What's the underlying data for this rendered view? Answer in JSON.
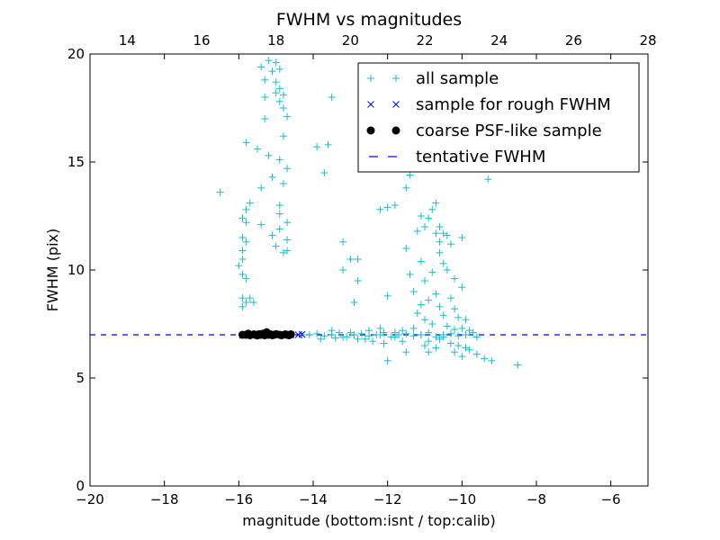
{
  "chart_data": {
    "type": "scatter",
    "title": "FWHM vs magnitudes",
    "xlabel": "magnitude (bottom:isnt / top:calib)",
    "ylabel": "FWHM (pix)",
    "xlim": [
      -20,
      -5
    ],
    "ylim": [
      0,
      20
    ],
    "x_ticks": [
      -20,
      -18,
      -16,
      -14,
      -12,
      -10,
      -8,
      -6
    ],
    "x_tick_labels": [
      "−20",
      "−18",
      "−16",
      "−14",
      "−12",
      "−10",
      "−8",
      "−6"
    ],
    "y_ticks": [
      0,
      5,
      10,
      15,
      20
    ],
    "y_tick_labels": [
      "0",
      "5",
      "10",
      "15",
      "20"
    ],
    "top_xlim": [
      13.0,
      28.0
    ],
    "top_x_ticks": [
      14,
      16,
      18,
      20,
      22,
      24,
      26,
      28
    ],
    "top_x_tick_labels": [
      "14",
      "16",
      "18",
      "20",
      "22",
      "24",
      "26",
      "28"
    ],
    "grid": false,
    "legend_position": "top-right",
    "series": [
      {
        "name": "all sample",
        "marker": "plus",
        "color": "#17becf",
        "points": [
          [
            -15.2,
            19.7
          ],
          [
            -15.4,
            19.4
          ],
          [
            -15.0,
            19.6
          ],
          [
            -15.1,
            19.2
          ],
          [
            -14.9,
            19.3
          ],
          [
            -15.3,
            18.8
          ],
          [
            -15.0,
            18.7
          ],
          [
            -14.9,
            18.4
          ],
          [
            -15.0,
            18.2
          ],
          [
            -14.8,
            18.1
          ],
          [
            -14.9,
            17.8
          ],
          [
            -14.8,
            17.5
          ],
          [
            -15.3,
            18.0
          ],
          [
            -14.7,
            17.1
          ],
          [
            -13.5,
            18.0
          ],
          [
            -15.3,
            17.0
          ],
          [
            -14.8,
            16.2
          ],
          [
            -14.9,
            15.1
          ],
          [
            -14.7,
            14.7
          ],
          [
            -14.8,
            14.0
          ],
          [
            -15.5,
            15.6
          ],
          [
            -15.2,
            15.3
          ],
          [
            -15.4,
            13.8
          ],
          [
            -15.8,
            15.9
          ],
          [
            -16.5,
            13.6
          ],
          [
            -15.1,
            14.3
          ],
          [
            -14.9,
            13.0
          ],
          [
            -15.7,
            13.1
          ],
          [
            -15.8,
            12.8
          ],
          [
            -15.9,
            12.4
          ],
          [
            -15.8,
            12.2
          ],
          [
            -15.9,
            11.5
          ],
          [
            -15.8,
            11.3
          ],
          [
            -15.9,
            10.9
          ],
          [
            -15.9,
            10.5
          ],
          [
            -16.0,
            10.2
          ],
          [
            -15.9,
            9.8
          ],
          [
            -15.8,
            9.6
          ],
          [
            -15.9,
            8.7
          ],
          [
            -15.8,
            8.5
          ],
          [
            -15.7,
            8.7
          ],
          [
            -15.6,
            8.5
          ],
          [
            -15.9,
            8.3
          ],
          [
            -15.4,
            12.1
          ],
          [
            -15.1,
            11.6
          ],
          [
            -14.9,
            12.6
          ],
          [
            -14.9,
            11.9
          ],
          [
            -14.7,
            11.4
          ],
          [
            -14.7,
            10.9
          ],
          [
            -14.8,
            10.8
          ],
          [
            -14.7,
            12.2
          ],
          [
            -15.0,
            11.1
          ],
          [
            -13.9,
            15.7
          ],
          [
            -13.6,
            15.8
          ],
          [
            -13.7,
            14.5
          ],
          [
            -13.2,
            11.3
          ],
          [
            -13.0,
            10.5
          ],
          [
            -13.2,
            10.0
          ],
          [
            -12.8,
            9.5
          ],
          [
            -12.9,
            8.5
          ],
          [
            -12.8,
            10.5
          ],
          [
            -12.2,
            12.8
          ],
          [
            -12.0,
            12.9
          ],
          [
            -11.8,
            13.0
          ],
          [
            -11.5,
            13.8
          ],
          [
            -11.4,
            14.4
          ],
          [
            -11.3,
            14.7
          ],
          [
            -11.1,
            12.5
          ],
          [
            -11.2,
            11.8
          ],
          [
            -11.0,
            12.0
          ],
          [
            -10.9,
            12.4
          ],
          [
            -10.8,
            12.8
          ],
          [
            -10.7,
            13.1
          ],
          [
            -10.6,
            12.0
          ],
          [
            -10.7,
            11.7
          ],
          [
            -10.5,
            11.7
          ],
          [
            -10.6,
            11.3
          ],
          [
            -10.4,
            11.6
          ],
          [
            -10.3,
            11.2
          ],
          [
            -10.0,
            11.5
          ],
          [
            -11.5,
            11.0
          ],
          [
            -11.4,
            9.8
          ],
          [
            -11.1,
            10.4
          ],
          [
            -11.0,
            9.5
          ],
          [
            -10.8,
            9.9
          ],
          [
            -10.6,
            10.8
          ],
          [
            -10.5,
            10.3
          ],
          [
            -10.4,
            10.0
          ],
          [
            -10.2,
            9.6
          ],
          [
            -10.0,
            9.2
          ],
          [
            -9.3,
            14.2
          ],
          [
            -12.0,
            8.8
          ],
          [
            -11.3,
            9.0
          ],
          [
            -11.1,
            8.4
          ],
          [
            -10.9,
            8.6
          ],
          [
            -10.7,
            8.9
          ],
          [
            -10.6,
            8.3
          ],
          [
            -10.5,
            7.9
          ],
          [
            -10.3,
            8.7
          ],
          [
            -10.2,
            8.2
          ],
          [
            -10.1,
            7.8
          ],
          [
            -9.9,
            7.7
          ],
          [
            -11.2,
            8.0
          ],
          [
            -11.0,
            7.7
          ],
          [
            -10.8,
            7.5
          ],
          [
            -10.4,
            7.4
          ],
          [
            -10.0,
            7.3
          ],
          [
            -9.8,
            7.2
          ],
          [
            -11.3,
            7.3
          ],
          [
            -11.6,
            7.2
          ],
          [
            -10.6,
            6.8
          ],
          [
            -10.3,
            6.6
          ],
          [
            -10.1,
            6.5
          ],
          [
            -9.9,
            6.4
          ],
          [
            -9.8,
            6.3
          ],
          [
            -10.2,
            6.2
          ],
          [
            -10.0,
            6.0
          ],
          [
            -9.6,
            6.1
          ],
          [
            -9.4,
            5.9
          ],
          [
            -9.2,
            5.8
          ],
          [
            -8.5,
            5.6
          ],
          [
            -12.0,
            5.8
          ],
          [
            -11.0,
            6.5
          ],
          [
            -10.9,
            6.2
          ],
          [
            -10.7,
            6.4
          ],
          [
            -12.5,
            7.2
          ],
          [
            -12.2,
            7.0
          ],
          [
            -11.8,
            6.9
          ],
          [
            -12.6,
            6.8
          ],
          [
            -13.5,
            7.2
          ],
          [
            -13.0,
            7.1
          ],
          [
            -11.5,
            6.2
          ],
          [
            -11.8,
            7.1
          ],
          [
            -12.1,
            6.6
          ],
          [
            -12.4,
            6.7
          ],
          [
            -13.2,
            6.9
          ],
          [
            -11.1,
            7.0
          ],
          [
            -10.5,
            6.9
          ],
          [
            -14.3,
            7.0
          ],
          [
            -14.1,
            7.0
          ],
          [
            -13.9,
            7.05
          ],
          [
            -13.7,
            6.95
          ],
          [
            -13.5,
            7.0
          ],
          [
            -13.3,
            7.1
          ],
          [
            -13.1,
            6.9
          ],
          [
            -12.9,
            7.0
          ],
          [
            -12.7,
            7.05
          ],
          [
            -12.5,
            6.95
          ],
          [
            -12.3,
            7.0
          ],
          [
            -12.1,
            7.1
          ],
          [
            -11.9,
            6.9
          ],
          [
            -11.7,
            7.0
          ],
          [
            -11.5,
            7.05
          ],
          [
            -11.3,
            6.95
          ],
          [
            -11.1,
            7.0
          ],
          [
            -10.9,
            7.1
          ],
          [
            -10.7,
            6.9
          ],
          [
            -10.5,
            7.0
          ],
          [
            -10.3,
            7.05
          ],
          [
            -10.1,
            6.95
          ],
          [
            -9.9,
            7.0
          ],
          [
            -9.7,
            7.1
          ],
          [
            -13.8,
            6.8
          ],
          [
            -13.4,
            6.85
          ],
          [
            -12.8,
            6.8
          ],
          [
            -12.2,
            7.3
          ],
          [
            -11.6,
            6.7
          ],
          [
            -10.9,
            6.7
          ],
          [
            -10.2,
            7.25
          ],
          [
            -9.6,
            6.9
          ]
        ]
      },
      {
        "name": "sample for rough FWHM",
        "marker": "x",
        "color": "#0000ff",
        "points": [
          [
            -15.8,
            7.0
          ],
          [
            -15.6,
            7.02
          ],
          [
            -15.4,
            6.98
          ],
          [
            -15.2,
            7.0
          ],
          [
            -15.0,
            7.02
          ],
          [
            -14.8,
            6.98
          ],
          [
            -14.6,
            7.0
          ],
          [
            -14.4,
            7.0
          ],
          [
            -14.3,
            7.02
          ],
          [
            -15.9,
            6.98
          ]
        ]
      },
      {
        "name": "coarse PSF-like sample",
        "marker": "circle",
        "color": "#000000",
        "points": [
          [
            -15.9,
            7.0
          ],
          [
            -15.8,
            7.0
          ],
          [
            -15.75,
            7.05
          ],
          [
            -15.7,
            6.98
          ],
          [
            -15.6,
            7.02
          ],
          [
            -15.55,
            7.0
          ],
          [
            -15.5,
            6.97
          ],
          [
            -15.45,
            7.03
          ],
          [
            -15.4,
            7.0
          ],
          [
            -15.35,
            7.05
          ],
          [
            -15.3,
            6.98
          ],
          [
            -15.25,
            7.12
          ],
          [
            -15.2,
            7.0
          ],
          [
            -15.15,
            7.02
          ],
          [
            -15.1,
            6.98
          ],
          [
            -15.05,
            7.0
          ],
          [
            -15.0,
            7.03
          ],
          [
            -14.9,
            7.0
          ],
          [
            -14.85,
            6.98
          ],
          [
            -14.75,
            7.02
          ],
          [
            -14.7,
            7.0
          ],
          [
            -14.65,
            6.98
          ],
          [
            -14.6,
            7.02
          ]
        ]
      }
    ],
    "hlines": [
      {
        "name": "tentative FWHM",
        "y": 7.0,
        "color": "#0000ff",
        "style": "dashed"
      }
    ]
  }
}
